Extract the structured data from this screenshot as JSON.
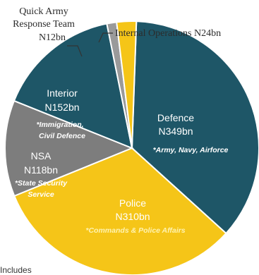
{
  "chart_data": {
    "type": "pie",
    "unit": "N bn",
    "slices": [
      {
        "name": "Defence",
        "amount_label": "N349bn",
        "value": 349,
        "note": "*Army, Navy, Airforce",
        "color": "#1e5667"
      },
      {
        "name": "Police",
        "amount_label": "N310bn",
        "value": 310,
        "note": "*Commands & Police Affairs",
        "color": "#f5c518"
      },
      {
        "name": "NSA",
        "amount_label": "N118bn",
        "value": 118,
        "note": "*State Security Service",
        "color": "#7d7d7d"
      },
      {
        "name": "Interior",
        "amount_label": "N152bn",
        "value": 152,
        "note": "*Immigration, Civil Defence",
        "color": "#1e5667"
      },
      {
        "name": "Quick Army Response Team",
        "amount_label": "N12bn",
        "value": 12,
        "note": "",
        "color": "#9a9a9a"
      },
      {
        "name": "Internal Operations",
        "amount_label": "N24bn",
        "value": 24,
        "note": "",
        "color": "#f5c518"
      }
    ],
    "outside_labels": {
      "quick_line1": "Quick Army",
      "quick_line2": "Response Team",
      "quick_line3": "N12bn",
      "internal": "Internal Operations N24bn"
    },
    "footnote": "Includes"
  }
}
